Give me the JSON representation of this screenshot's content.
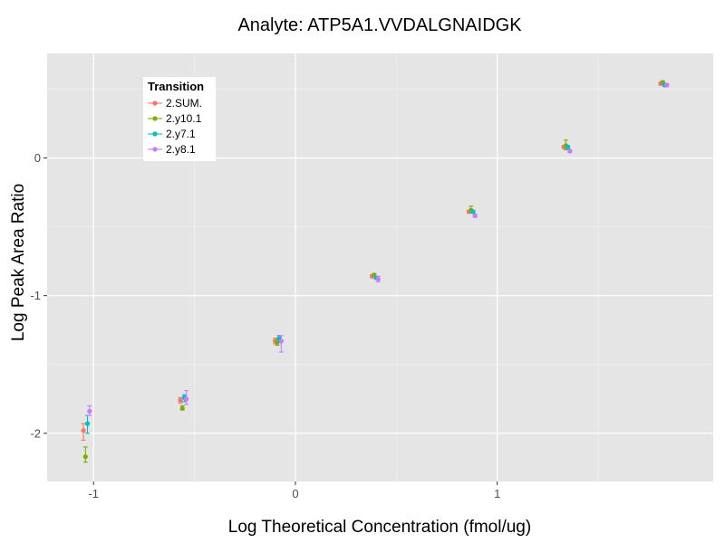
{
  "chart_data": {
    "type": "scatter",
    "title": "Analyte: ATP5A1.VVDALGNAIDGK",
    "xlabel": "Log Theoretical Concentration (fmol/ug)",
    "ylabel": "Log Peak Area Ratio",
    "xlim": [
      -1.23,
      2.07
    ],
    "ylim": [
      -2.35,
      0.76
    ],
    "x_ticks": [
      -1,
      0,
      1
    ],
    "y_ticks": [
      -2,
      -1,
      0
    ],
    "x_tick_labels": [
      "-1",
      "0",
      "1"
    ],
    "y_tick_labels": [
      "-2",
      "-1",
      "0"
    ],
    "legend": {
      "title": "Transition",
      "position": "top-left"
    },
    "series": [
      {
        "name": "2.SUM.",
        "color": "#F8766D",
        "points": [
          {
            "x": -1.05,
            "y": -1.98,
            "lo": -2.05,
            "hi": -1.93
          },
          {
            "x": -0.57,
            "y": -1.76,
            "lo": -1.78,
            "hi": -1.74
          },
          {
            "x": -0.1,
            "y": -1.33,
            "lo": -1.35,
            "hi": -1.31
          },
          {
            "x": 0.38,
            "y": -0.86,
            "lo": -0.87,
            "hi": -0.85
          },
          {
            "x": 0.86,
            "y": -0.39,
            "lo": -0.4,
            "hi": -0.38
          },
          {
            "x": 1.33,
            "y": 0.08,
            "lo": 0.07,
            "hi": 0.09
          },
          {
            "x": 1.81,
            "y": 0.54,
            "lo": 0.53,
            "hi": 0.55
          }
        ]
      },
      {
        "name": "2.y10.1",
        "color": "#7CAE00",
        "points": [
          {
            "x": -1.04,
            "y": -2.17,
            "lo": -2.21,
            "hi": -2.1
          },
          {
            "x": -0.56,
            "y": -1.82,
            "lo": -1.83,
            "hi": -1.8
          },
          {
            "x": -0.09,
            "y": -1.34,
            "lo": -1.36,
            "hi": -1.31
          },
          {
            "x": 0.39,
            "y": -0.85,
            "lo": -0.86,
            "hi": -0.84
          },
          {
            "x": 0.87,
            "y": -0.38,
            "lo": -0.4,
            "hi": -0.35
          },
          {
            "x": 1.34,
            "y": 0.09,
            "lo": 0.06,
            "hi": 0.13
          },
          {
            "x": 1.82,
            "y": 0.55,
            "lo": 0.54,
            "hi": 0.56
          }
        ]
      },
      {
        "name": "2.y7.1",
        "color": "#00BFC4",
        "points": [
          {
            "x": -1.03,
            "y": -1.93,
            "lo": -2.0,
            "hi": -1.87
          },
          {
            "x": -0.55,
            "y": -1.74,
            "lo": -1.77,
            "hi": -1.72
          },
          {
            "x": -0.08,
            "y": -1.31,
            "lo": -1.34,
            "hi": -1.29
          },
          {
            "x": 0.4,
            "y": -0.87,
            "lo": -0.88,
            "hi": -0.86
          },
          {
            "x": 0.88,
            "y": -0.39,
            "lo": -0.4,
            "hi": -0.38
          },
          {
            "x": 1.35,
            "y": 0.08,
            "lo": 0.07,
            "hi": 0.09
          },
          {
            "x": 1.83,
            "y": 0.53,
            "lo": 0.52,
            "hi": 0.54
          }
        ]
      },
      {
        "name": "2.y8.1",
        "color": "#C77CFF",
        "points": [
          {
            "x": -1.02,
            "y": -1.84,
            "lo": -1.87,
            "hi": -1.8
          },
          {
            "x": -0.54,
            "y": -1.75,
            "lo": -1.79,
            "hi": -1.69
          },
          {
            "x": -0.07,
            "y": -1.33,
            "lo": -1.41,
            "hi": -1.29
          },
          {
            "x": 0.41,
            "y": -0.88,
            "lo": -0.9,
            "hi": -0.86
          },
          {
            "x": 0.89,
            "y": -0.42,
            "lo": -0.43,
            "hi": -0.41
          },
          {
            "x": 1.36,
            "y": 0.05,
            "lo": 0.04,
            "hi": 0.06
          },
          {
            "x": 1.84,
            "y": 0.53,
            "lo": 0.52,
            "hi": 0.54
          }
        ]
      }
    ]
  }
}
